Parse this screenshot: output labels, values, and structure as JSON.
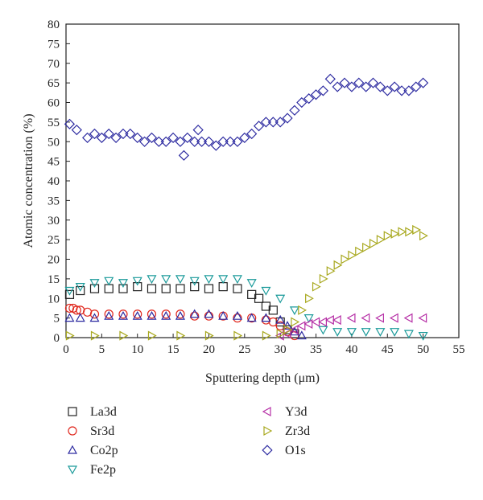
{
  "chart_data": {
    "type": "scatter",
    "xlabel": "Sputtering depth (μm)",
    "ylabel": "Atomic concentration (%)",
    "xlim": [
      0,
      55
    ],
    "ylim": [
      0,
      80
    ],
    "x_ticks": [
      "0",
      "5",
      "10",
      "15",
      "20",
      "25",
      "30",
      "35",
      "40",
      "45",
      "50",
      "55"
    ],
    "y_ticks": [
      "0",
      "5",
      "10",
      "15",
      "20",
      "25",
      "30",
      "35",
      "40",
      "45",
      "50",
      "55",
      "60",
      "65",
      "70",
      "75",
      "80"
    ],
    "grid": false,
    "legend_position": "below",
    "series": [
      {
        "name": "La3d",
        "marker": "square",
        "color": "#222222",
        "x": [
          0.5,
          2,
          4,
          6,
          8,
          10,
          12,
          14,
          16,
          18,
          20,
          22,
          24,
          26,
          27,
          28,
          29,
          30,
          31,
          32
        ],
        "y": [
          11,
          12,
          12.5,
          12.5,
          12.5,
          13,
          12.5,
          12.5,
          12.5,
          13,
          12.5,
          13,
          12.5,
          11,
          10,
          8,
          7,
          4,
          2,
          1
        ]
      },
      {
        "name": "Sr3d",
        "marker": "circle",
        "color": "#e0281e",
        "x": [
          0.5,
          1,
          1.5,
          2,
          3,
          4,
          6,
          8,
          10,
          12,
          14,
          16,
          18,
          20,
          22,
          24,
          26,
          28,
          29,
          30,
          31,
          32
        ],
        "y": [
          7.5,
          7.5,
          7,
          7,
          6.5,
          6,
          6,
          6,
          6,
          6,
          6,
          6,
          5.5,
          5.5,
          5.5,
          5,
          5,
          4.5,
          4,
          3,
          1.5,
          0.5
        ]
      },
      {
        "name": "Co2p",
        "marker": "triangle-up",
        "color": "#2c2aa0",
        "x": [
          0.5,
          2,
          4,
          6,
          8,
          10,
          12,
          14,
          16,
          18,
          20,
          22,
          24,
          26,
          28,
          30,
          31,
          32,
          33
        ],
        "y": [
          5,
          5,
          5,
          5.5,
          5.5,
          5.5,
          5.5,
          5.5,
          5.5,
          6,
          6,
          5.5,
          5.5,
          5,
          5,
          4.5,
          3,
          1.5,
          0.5
        ]
      },
      {
        "name": "Fe2p",
        "marker": "triangle-down",
        "color": "#1a9a9a",
        "x": [
          0.5,
          2,
          4,
          6,
          8,
          10,
          12,
          14,
          16,
          18,
          20,
          22,
          24,
          26,
          28,
          30,
          32,
          34,
          36,
          38,
          40,
          42,
          44,
          46,
          48,
          50
        ],
        "y": [
          12,
          13,
          14,
          14.5,
          14,
          14.5,
          15,
          15,
          15,
          14.5,
          15,
          15,
          15,
          14,
          12,
          10,
          7,
          5,
          2,
          1.5,
          1.5,
          1.5,
          1.5,
          1.5,
          1,
          0.5
        ]
      },
      {
        "name": "Y3d",
        "marker": "triangle-left",
        "color": "#b62fa6",
        "x": [
          30,
          31,
          32,
          33,
          34,
          35,
          36,
          37,
          38,
          40,
          42,
          44,
          46,
          48,
          50
        ],
        "y": [
          0.5,
          1,
          2,
          3,
          3.5,
          4,
          4,
          4.5,
          4.5,
          5,
          5,
          5,
          5,
          5,
          5
        ]
      },
      {
        "name": "Zr3d",
        "marker": "triangle-right",
        "color": "#a8a81e",
        "x": [
          0.5,
          4,
          8,
          12,
          16,
          20,
          24,
          28,
          30,
          31,
          32,
          33,
          34,
          35,
          36,
          37,
          38,
          39,
          40,
          41,
          42,
          43,
          44,
          45,
          46,
          47,
          48,
          49,
          50
        ],
        "y": [
          0.5,
          0.5,
          0.5,
          0.5,
          0.5,
          0.5,
          0.5,
          0.5,
          1,
          2,
          4,
          7,
          10,
          13,
          15,
          17,
          18.5,
          20,
          21,
          22,
          23,
          24,
          25,
          26,
          26.5,
          27,
          27,
          27.5,
          26
        ]
      },
      {
        "name": "O1s",
        "marker": "diamond",
        "color": "#2c2aa0",
        "x": [
          0.5,
          1.5,
          3,
          4,
          5,
          6,
          7,
          8,
          9,
          10,
          11,
          12,
          13,
          14,
          15,
          16,
          16.5,
          17,
          18,
          18.5,
          19,
          20,
          21,
          22,
          23,
          24,
          25,
          26,
          27,
          28,
          29,
          30,
          31,
          32,
          33,
          34,
          35,
          36,
          37,
          38,
          39,
          40,
          41,
          42,
          43,
          44,
          45,
          46,
          47,
          48,
          49,
          50
        ],
        "y": [
          54.5,
          53,
          51,
          52,
          51,
          52,
          51,
          52,
          52,
          51,
          50,
          51,
          50,
          50,
          51,
          50,
          46.5,
          51,
          50,
          53,
          50,
          50,
          49,
          50,
          50,
          50,
          51,
          52,
          54,
          55,
          55,
          55,
          56,
          58,
          60,
          61,
          62,
          63,
          66,
          64,
          65,
          64,
          65,
          64,
          65,
          64,
          63,
          64,
          63,
          63,
          64,
          65
        ]
      }
    ]
  }
}
